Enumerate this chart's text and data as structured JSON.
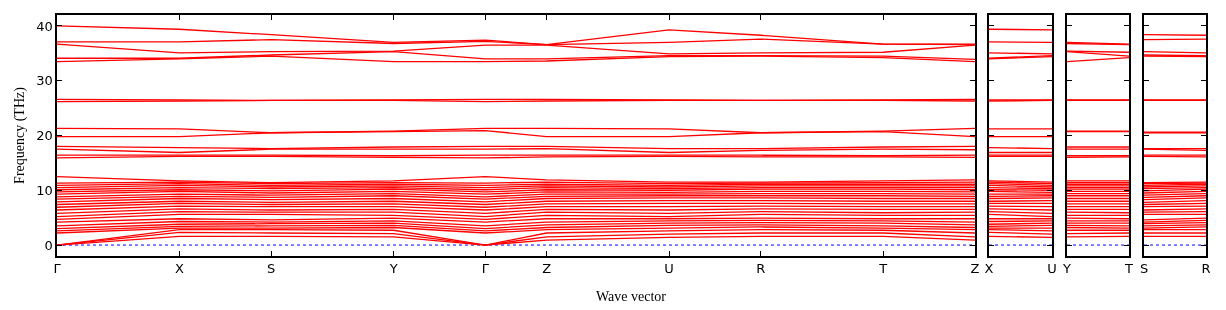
{
  "chart_data": [
    {
      "type": "line",
      "xlabel": "Wave vector",
      "ylabel": "Frequency (THz)",
      "color": "#ff0000",
      "categories": [
        "Γ",
        null,
        null,
        null,
        "X",
        null,
        null,
        "S",
        null,
        null,
        null,
        "Y",
        null,
        null,
        "Γ",
        null,
        "Z",
        null,
        null,
        null,
        "U",
        null,
        null,
        "R",
        null,
        null,
        null,
        "T",
        null,
        null,
        "Z"
      ],
      "ylim": [
        -2,
        42
      ],
      "yticks": [
        0,
        10,
        20,
        30,
        40
      ],
      "ref_lines": [
        {
          "axis": "y",
          "value": 0,
          "color": "#0000ff",
          "line_style": "dotted"
        }
      ],
      "series": [
        {
          "values": [
            40.0,
            null,
            null,
            null,
            39.4,
            null,
            null,
            38.4,
            null,
            null,
            null,
            37.0,
            null,
            null,
            37.4,
            null,
            36.6,
            null,
            null,
            null,
            39.3,
            null,
            null,
            38.3,
            null,
            null,
            null,
            36.7,
            null,
            null,
            36.7
          ]
        },
        {
          "values": [
            37.1,
            null,
            null,
            null,
            37.1,
            null,
            null,
            37.5,
            null,
            null,
            null,
            36.8,
            null,
            null,
            37.2,
            null,
            36.6,
            null,
            null,
            null,
            37.0,
            null,
            null,
            37.6,
            null,
            null,
            null,
            36.7,
            null,
            null,
            36.6
          ]
        },
        {
          "values": [
            36.7,
            null,
            null,
            null,
            35.1,
            null,
            null,
            35.3,
            null,
            null,
            null,
            35.4,
            null,
            null,
            36.5,
            null,
            36.5,
            null,
            null,
            null,
            34.9,
            null,
            null,
            35.1,
            null,
            null,
            null,
            35.2,
            null,
            null,
            36.5
          ]
        },
        {
          "values": [
            34.1,
            null,
            null,
            null,
            34.1,
            null,
            null,
            34.7,
            null,
            null,
            null,
            35.3,
            null,
            null,
            34.0,
            null,
            34.0,
            null,
            null,
            null,
            34.6,
            null,
            null,
            34.6,
            null,
            null,
            null,
            34.5,
            null,
            null,
            33.9
          ]
        },
        {
          "values": [
            33.5,
            null,
            null,
            null,
            34.0,
            null,
            null,
            34.5,
            null,
            null,
            null,
            33.5,
            null,
            null,
            33.5,
            null,
            33.6,
            null,
            null,
            null,
            34.4,
            null,
            null,
            34.5,
            null,
            null,
            null,
            34.2,
            null,
            null,
            33.5
          ]
        },
        {
          "values": [
            26.6,
            null,
            null,
            null,
            26.5,
            null,
            null,
            26.4,
            null,
            null,
            null,
            26.5,
            null,
            null,
            26.6,
            null,
            26.6,
            null,
            null,
            null,
            26.5,
            null,
            null,
            26.4,
            null,
            null,
            null,
            26.5,
            null,
            null,
            26.6
          ]
        },
        {
          "values": [
            26.2,
            null,
            null,
            null,
            26.3,
            null,
            null,
            26.4,
            null,
            null,
            null,
            26.4,
            null,
            null,
            26.2,
            null,
            26.3,
            null,
            null,
            null,
            26.4,
            null,
            null,
            26.4,
            null,
            null,
            null,
            26.4,
            null,
            null,
            26.3
          ]
        },
        {
          "values": [
            21.3,
            null,
            null,
            null,
            21.2,
            null,
            null,
            20.5,
            null,
            null,
            null,
            20.8,
            null,
            null,
            21.3,
            null,
            21.3,
            null,
            null,
            null,
            21.2,
            null,
            null,
            20.5,
            null,
            null,
            null,
            20.8,
            null,
            null,
            21.3
          ]
        },
        {
          "values": [
            19.8,
            null,
            null,
            null,
            19.8,
            null,
            null,
            20.5,
            null,
            null,
            null,
            20.7,
            null,
            null,
            20.9,
            null,
            19.8,
            null,
            null,
            null,
            19.8,
            null,
            null,
            20.5,
            null,
            null,
            null,
            20.7,
            null,
            null,
            19.8
          ]
        },
        {
          "values": [
            18.0,
            null,
            null,
            null,
            17.8,
            null,
            null,
            17.6,
            null,
            null,
            null,
            17.9,
            null,
            null,
            18.0,
            null,
            18.0,
            null,
            null,
            null,
            17.6,
            null,
            null,
            17.6,
            null,
            null,
            null,
            17.9,
            null,
            null,
            18.0
          ]
        },
        {
          "values": [
            17.5,
            null,
            null,
            null,
            16.9,
            null,
            null,
            17.5,
            null,
            null,
            null,
            17.5,
            null,
            null,
            17.5,
            null,
            17.6,
            null,
            null,
            null,
            16.9,
            null,
            null,
            17.3,
            null,
            null,
            null,
            17.5,
            null,
            null,
            17.4
          ]
        },
        {
          "values": [
            16.4,
            null,
            null,
            null,
            16.4,
            null,
            null,
            16.4,
            null,
            null,
            null,
            16.3,
            null,
            null,
            16.4,
            null,
            16.4,
            null,
            null,
            null,
            16.4,
            null,
            null,
            16.4,
            null,
            null,
            null,
            16.3,
            null,
            null,
            16.4
          ]
        },
        {
          "values": [
            15.9,
            null,
            null,
            null,
            16.2,
            null,
            null,
            16.2,
            null,
            null,
            null,
            16.0,
            null,
            null,
            15.9,
            null,
            16.1,
            null,
            null,
            null,
            16.2,
            null,
            null,
            16.1,
            null,
            null,
            null,
            16.1,
            null,
            null,
            16.0
          ]
        },
        {
          "values": [
            0,
            null,
            null,
            null,
            1.6,
            null,
            null,
            1.6,
            null,
            null,
            null,
            1.5,
            null,
            null,
            0,
            null,
            0.9,
            null,
            null,
            null,
            1.4,
            null,
            null,
            1.6,
            null,
            null,
            null,
            1.6,
            null,
            null,
            0.9
          ]
        },
        {
          "values": [
            0,
            null,
            null,
            null,
            2.3,
            null,
            null,
            2.2,
            null,
            null,
            null,
            2.1,
            null,
            null,
            0,
            null,
            1.5,
            null,
            null,
            null,
            2.0,
            null,
            null,
            2.2,
            null,
            null,
            null,
            2.2,
            null,
            null,
            1.5
          ]
        },
        {
          "values": [
            0,
            null,
            null,
            null,
            2.8,
            null,
            null,
            2.8,
            null,
            null,
            null,
            2.7,
            null,
            null,
            0,
            null,
            2.2,
            null,
            null,
            null,
            2.6,
            null,
            null,
            2.8,
            null,
            null,
            null,
            2.7,
            null,
            null,
            2.2
          ]
        },
        {
          "values": [
            2.2,
            null,
            null,
            null,
            3.1,
            null,
            null,
            3.1,
            null,
            null,
            null,
            3.2,
            null,
            null,
            2.2,
            null,
            2.8,
            null,
            null,
            null,
            3.1,
            null,
            null,
            3.3,
            null,
            null,
            null,
            3.1,
            null,
            null,
            2.8
          ]
        },
        {
          "values": [
            2.6,
            null,
            null,
            null,
            3.4,
            null,
            null,
            3.5,
            null,
            null,
            null,
            3.6,
            null,
            null,
            2.6,
            null,
            3.2,
            null,
            null,
            null,
            3.6,
            null,
            null,
            3.7,
            null,
            null,
            null,
            3.5,
            null,
            null,
            3.2
          ]
        },
        {
          "values": [
            3.0,
            null,
            null,
            null,
            3.8,
            null,
            null,
            3.9,
            null,
            null,
            null,
            4.0,
            null,
            null,
            3.0,
            null,
            3.7,
            null,
            null,
            null,
            4.0,
            null,
            null,
            4.1,
            null,
            null,
            null,
            4.0,
            null,
            null,
            3.7
          ]
        },
        {
          "values": [
            3.5,
            null,
            null,
            null,
            4.3,
            null,
            null,
            4.2,
            null,
            null,
            null,
            4.4,
            null,
            null,
            3.5,
            null,
            4.2,
            null,
            null,
            null,
            4.4,
            null,
            null,
            4.5,
            null,
            null,
            null,
            4.4,
            null,
            null,
            4.2
          ]
        },
        {
          "values": [
            4.2,
            null,
            null,
            null,
            4.8,
            null,
            null,
            4.6,
            null,
            null,
            null,
            4.9,
            null,
            null,
            4.2,
            null,
            4.8,
            null,
            null,
            null,
            4.8,
            null,
            null,
            4.9,
            null,
            null,
            null,
            4.8,
            null,
            null,
            4.8
          ]
        },
        {
          "values": [
            4.7,
            null,
            null,
            null,
            5.6,
            null,
            null,
            5.6,
            null,
            null,
            null,
            5.4,
            null,
            null,
            4.7,
            null,
            5.4,
            null,
            null,
            null,
            5.2,
            null,
            null,
            5.6,
            null,
            null,
            null,
            5.4,
            null,
            null,
            5.4
          ]
        },
        {
          "values": [
            5.2,
            null,
            null,
            null,
            6.1,
            null,
            null,
            6.0,
            null,
            null,
            null,
            6.0,
            null,
            null,
            5.2,
            null,
            6.0,
            null,
            null,
            null,
            5.8,
            null,
            null,
            6.1,
            null,
            null,
            null,
            5.9,
            null,
            null,
            6.0
          ]
        },
        {
          "values": [
            5.8,
            null,
            null,
            null,
            6.6,
            null,
            null,
            6.4,
            null,
            null,
            null,
            6.5,
            null,
            null,
            5.8,
            null,
            6.5,
            null,
            null,
            null,
            6.4,
            null,
            null,
            6.6,
            null,
            null,
            null,
            6.5,
            null,
            null,
            6.5
          ]
        },
        {
          "values": [
            6.4,
            null,
            null,
            null,
            7.1,
            null,
            null,
            7.0,
            null,
            null,
            null,
            7.0,
            null,
            null,
            6.4,
            null,
            7.0,
            null,
            null,
            null,
            7.0,
            null,
            null,
            7.1,
            null,
            null,
            null,
            7.0,
            null,
            null,
            7.0
          ]
        },
        {
          "values": [
            6.9,
            null,
            null,
            null,
            7.6,
            null,
            null,
            7.4,
            null,
            null,
            null,
            7.5,
            null,
            null,
            6.9,
            null,
            7.5,
            null,
            null,
            null,
            7.6,
            null,
            null,
            7.6,
            null,
            null,
            null,
            7.5,
            null,
            null,
            7.5
          ]
        },
        {
          "values": [
            7.4,
            null,
            null,
            null,
            8.0,
            null,
            null,
            7.8,
            null,
            null,
            null,
            8.0,
            null,
            null,
            7.4,
            null,
            8.0,
            null,
            null,
            null,
            8.1,
            null,
            null,
            8.1,
            null,
            null,
            null,
            8.0,
            null,
            null,
            8.0
          ]
        },
        {
          "values": [
            7.9,
            null,
            null,
            null,
            8.5,
            null,
            null,
            8.3,
            null,
            null,
            null,
            8.5,
            null,
            null,
            7.9,
            null,
            8.5,
            null,
            null,
            null,
            8.6,
            null,
            null,
            8.6,
            null,
            null,
            null,
            8.5,
            null,
            null,
            8.5
          ]
        },
        {
          "values": [
            8.4,
            null,
            null,
            null,
            8.9,
            null,
            null,
            8.7,
            null,
            null,
            null,
            9.0,
            null,
            null,
            8.4,
            null,
            8.9,
            null,
            null,
            null,
            9.0,
            null,
            null,
            9.0,
            null,
            null,
            null,
            9.0,
            null,
            null,
            8.9
          ]
        },
        {
          "values": [
            8.8,
            null,
            null,
            null,
            9.3,
            null,
            null,
            9.1,
            null,
            null,
            null,
            9.4,
            null,
            null,
            8.8,
            null,
            9.3,
            null,
            null,
            null,
            9.3,
            null,
            null,
            9.4,
            null,
            null,
            null,
            9.4,
            null,
            null,
            9.3
          ]
        },
        {
          "values": [
            9.3,
            null,
            null,
            null,
            9.8,
            null,
            null,
            9.5,
            null,
            null,
            null,
            9.8,
            null,
            null,
            9.3,
            null,
            9.7,
            null,
            null,
            null,
            9.6,
            null,
            null,
            9.8,
            null,
            null,
            null,
            9.8,
            null,
            null,
            9.7
          ]
        },
        {
          "values": [
            9.7,
            null,
            null,
            null,
            10.1,
            null,
            null,
            9.9,
            null,
            null,
            null,
            10.2,
            null,
            null,
            9.7,
            null,
            10.1,
            null,
            null,
            null,
            10.0,
            null,
            null,
            10.2,
            null,
            null,
            null,
            10.2,
            null,
            null,
            10.1
          ]
        },
        {
          "values": [
            10.1,
            null,
            null,
            null,
            10.5,
            null,
            null,
            10.3,
            null,
            null,
            null,
            10.5,
            null,
            null,
            10.1,
            null,
            10.5,
            null,
            null,
            null,
            10.3,
            null,
            null,
            10.5,
            null,
            null,
            null,
            10.5,
            null,
            null,
            10.5
          ]
        },
        {
          "values": [
            10.5,
            null,
            null,
            null,
            10.9,
            null,
            null,
            10.6,
            null,
            null,
            null,
            10.8,
            null,
            null,
            10.5,
            null,
            10.8,
            null,
            null,
            null,
            10.6,
            null,
            null,
            10.8,
            null,
            null,
            null,
            10.8,
            null,
            null,
            10.8
          ]
        },
        {
          "values": [
            10.9,
            null,
            null,
            null,
            11.2,
            null,
            null,
            10.9,
            null,
            null,
            null,
            11.1,
            null,
            null,
            10.9,
            null,
            11.1,
            null,
            null,
            null,
            10.9,
            null,
            null,
            11.1,
            null,
            null,
            null,
            11.1,
            null,
            null,
            11.1
          ]
        },
        {
          "values": [
            11.3,
            null,
            null,
            null,
            11.5,
            null,
            null,
            11.2,
            null,
            null,
            null,
            11.4,
            null,
            null,
            11.3,
            null,
            11.5,
            null,
            null,
            null,
            11.2,
            null,
            null,
            11.3,
            null,
            null,
            null,
            11.4,
            null,
            null,
            11.5
          ]
        },
        {
          "values": [
            12.5,
            null,
            null,
            null,
            11.7,
            null,
            null,
            11.4,
            null,
            null,
            null,
            11.7,
            null,
            null,
            12.5,
            null,
            11.9,
            null,
            null,
            null,
            11.5,
            null,
            null,
            11.5,
            null,
            null,
            null,
            11.7,
            null,
            null,
            11.9
          ]
        }
      ]
    },
    {
      "type": "line",
      "color": "#ff0000",
      "categories": [
        "X",
        null,
        "U"
      ],
      "ylim": [
        -2,
        42
      ],
      "yticks": [
        0,
        10,
        20,
        30,
        40
      ],
      "tick_labels": "x",
      "ref_lines": [
        {
          "axis": "y",
          "value": 0,
          "color": "#0000ff",
          "line_style": "dotted"
        }
      ],
      "series": [
        {
          "values": [
            39.4,
            null,
            39.3
          ]
        },
        {
          "values": [
            37.1,
            null,
            37.0
          ]
        },
        {
          "values": [
            35.1,
            null,
            34.9
          ]
        },
        {
          "values": [
            34.1,
            null,
            34.6
          ]
        },
        {
          "values": [
            34.0,
            null,
            34.4
          ]
        },
        {
          "values": [
            26.5,
            null,
            26.5
          ]
        },
        {
          "values": [
            26.3,
            null,
            26.4
          ]
        },
        {
          "values": [
            21.2,
            null,
            21.2
          ]
        },
        {
          "values": [
            19.8,
            null,
            19.8
          ]
        },
        {
          "values": [
            17.8,
            null,
            17.6
          ]
        },
        {
          "values": [
            16.9,
            null,
            16.9
          ]
        },
        {
          "values": [
            16.4,
            null,
            16.4
          ]
        },
        {
          "values": [
            16.2,
            null,
            16.2
          ]
        },
        {
          "values": [
            1.6,
            null,
            1.4
          ]
        },
        {
          "values": [
            2.3,
            null,
            2.0
          ]
        },
        {
          "values": [
            2.8,
            null,
            2.6
          ]
        },
        {
          "values": [
            3.1,
            null,
            3.1
          ]
        },
        {
          "values": [
            3.4,
            null,
            3.6
          ]
        },
        {
          "values": [
            3.8,
            null,
            4.0
          ]
        },
        {
          "values": [
            4.3,
            null,
            4.4
          ]
        },
        {
          "values": [
            4.8,
            null,
            4.8
          ]
        },
        {
          "values": [
            5.6,
            null,
            5.2
          ]
        },
        {
          "values": [
            6.1,
            null,
            5.8
          ]
        },
        {
          "values": [
            6.6,
            null,
            6.4
          ]
        },
        {
          "values": [
            7.1,
            null,
            7.0
          ]
        },
        {
          "values": [
            7.6,
            null,
            7.6
          ]
        },
        {
          "values": [
            8.0,
            null,
            8.1
          ]
        },
        {
          "values": [
            8.5,
            null,
            8.6
          ]
        },
        {
          "values": [
            8.9,
            null,
            9.0
          ]
        },
        {
          "values": [
            9.3,
            null,
            9.3
          ]
        },
        {
          "values": [
            9.8,
            null,
            9.6
          ]
        },
        {
          "values": [
            10.1,
            null,
            10.0
          ]
        },
        {
          "values": [
            10.5,
            null,
            10.3
          ]
        },
        {
          "values": [
            10.9,
            null,
            10.6
          ]
        },
        {
          "values": [
            11.2,
            null,
            10.9
          ]
        },
        {
          "values": [
            11.5,
            null,
            11.2
          ]
        },
        {
          "values": [
            11.7,
            null,
            11.5
          ]
        }
      ]
    },
    {
      "type": "line",
      "color": "#ff0000",
      "categories": [
        "Y",
        null,
        "T"
      ],
      "ylim": [
        -2,
        42
      ],
      "yticks": [
        0,
        10,
        20,
        30,
        40
      ],
      "tick_labels": "x",
      "ref_lines": [
        {
          "axis": "y",
          "value": 0,
          "color": "#0000ff",
          "line_style": "dotted"
        }
      ],
      "series": [
        {
          "values": [
            37.0,
            null,
            36.7
          ]
        },
        {
          "values": [
            36.8,
            null,
            36.6
          ]
        },
        {
          "values": [
            35.4,
            null,
            35.2
          ]
        },
        {
          "values": [
            35.3,
            null,
            34.5
          ]
        },
        {
          "values": [
            33.5,
            null,
            34.2
          ]
        },
        {
          "values": [
            26.5,
            null,
            26.5
          ]
        },
        {
          "values": [
            26.4,
            null,
            26.4
          ]
        },
        {
          "values": [
            20.8,
            null,
            20.8
          ]
        },
        {
          "values": [
            20.7,
            null,
            20.7
          ]
        },
        {
          "values": [
            17.9,
            null,
            17.9
          ]
        },
        {
          "values": [
            17.5,
            null,
            17.5
          ]
        },
        {
          "values": [
            16.3,
            null,
            16.3
          ]
        },
        {
          "values": [
            16.0,
            null,
            16.1
          ]
        },
        {
          "values": [
            1.5,
            null,
            1.6
          ]
        },
        {
          "values": [
            2.1,
            null,
            2.2
          ]
        },
        {
          "values": [
            2.7,
            null,
            2.7
          ]
        },
        {
          "values": [
            3.2,
            null,
            3.1
          ]
        },
        {
          "values": [
            3.6,
            null,
            3.5
          ]
        },
        {
          "values": [
            4.0,
            null,
            4.0
          ]
        },
        {
          "values": [
            4.4,
            null,
            4.4
          ]
        },
        {
          "values": [
            4.9,
            null,
            4.8
          ]
        },
        {
          "values": [
            5.4,
            null,
            5.4
          ]
        },
        {
          "values": [
            6.0,
            null,
            5.9
          ]
        },
        {
          "values": [
            6.5,
            null,
            6.5
          ]
        },
        {
          "values": [
            7.0,
            null,
            7.0
          ]
        },
        {
          "values": [
            7.5,
            null,
            7.5
          ]
        },
        {
          "values": [
            8.0,
            null,
            8.0
          ]
        },
        {
          "values": [
            8.5,
            null,
            8.5
          ]
        },
        {
          "values": [
            9.0,
            null,
            9.0
          ]
        },
        {
          "values": [
            9.4,
            null,
            9.4
          ]
        },
        {
          "values": [
            9.8,
            null,
            9.8
          ]
        },
        {
          "values": [
            10.2,
            null,
            10.2
          ]
        },
        {
          "values": [
            10.5,
            null,
            10.5
          ]
        },
        {
          "values": [
            10.8,
            null,
            10.8
          ]
        },
        {
          "values": [
            11.1,
            null,
            11.1
          ]
        },
        {
          "values": [
            11.4,
            null,
            11.4
          ]
        },
        {
          "values": [
            11.7,
            null,
            11.7
          ]
        }
      ]
    },
    {
      "type": "line",
      "color": "#ff0000",
      "categories": [
        "S",
        null,
        "R"
      ],
      "ylim": [
        -2,
        42
      ],
      "yticks": [
        0,
        10,
        20,
        30,
        40
      ],
      "tick_labels": "x",
      "ref_lines": [
        {
          "axis": "y",
          "value": 0,
          "color": "#0000ff",
          "line_style": "dotted"
        }
      ],
      "series": [
        {
          "values": [
            38.4,
            null,
            38.3
          ]
        },
        {
          "values": [
            37.5,
            null,
            37.6
          ]
        },
        {
          "values": [
            35.3,
            null,
            35.1
          ]
        },
        {
          "values": [
            34.7,
            null,
            34.6
          ]
        },
        {
          "values": [
            34.5,
            null,
            34.4
          ]
        },
        {
          "values": [
            26.5,
            null,
            26.5
          ]
        },
        {
          "values": [
            26.4,
            null,
            26.4
          ]
        },
        {
          "values": [
            20.6,
            null,
            20.6
          ]
        },
        {
          "values": [
            20.5,
            null,
            20.5
          ]
        },
        {
          "values": [
            17.6,
            null,
            17.6
          ]
        },
        {
          "values": [
            17.5,
            null,
            17.3
          ]
        },
        {
          "values": [
            16.4,
            null,
            16.4
          ]
        },
        {
          "values": [
            16.2,
            null,
            16.1
          ]
        },
        {
          "values": [
            1.6,
            null,
            1.6
          ]
        },
        {
          "values": [
            2.2,
            null,
            2.2
          ]
        },
        {
          "values": [
            2.8,
            null,
            2.8
          ]
        },
        {
          "values": [
            3.1,
            null,
            3.3
          ]
        },
        {
          "values": [
            3.5,
            null,
            3.7
          ]
        },
        {
          "values": [
            3.9,
            null,
            4.1
          ]
        },
        {
          "values": [
            4.2,
            null,
            4.5
          ]
        },
        {
          "values": [
            4.6,
            null,
            4.9
          ]
        },
        {
          "values": [
            5.6,
            null,
            5.6
          ]
        },
        {
          "values": [
            6.0,
            null,
            6.1
          ]
        },
        {
          "values": [
            6.4,
            null,
            6.6
          ]
        },
        {
          "values": [
            7.0,
            null,
            7.1
          ]
        },
        {
          "values": [
            7.4,
            null,
            7.6
          ]
        },
        {
          "values": [
            7.8,
            null,
            8.1
          ]
        },
        {
          "values": [
            8.3,
            null,
            8.6
          ]
        },
        {
          "values": [
            8.7,
            null,
            9.0
          ]
        },
        {
          "values": [
            9.1,
            null,
            9.4
          ]
        },
        {
          "values": [
            9.5,
            null,
            9.8
          ]
        },
        {
          "values": [
            9.9,
            null,
            10.2
          ]
        },
        {
          "values": [
            10.3,
            null,
            10.5
          ]
        },
        {
          "values": [
            10.6,
            null,
            10.8
          ]
        },
        {
          "values": [
            10.9,
            null,
            11.1
          ]
        },
        {
          "values": [
            11.2,
            null,
            11.3
          ]
        },
        {
          "values": [
            11.4,
            null,
            11.5
          ]
        }
      ]
    }
  ]
}
